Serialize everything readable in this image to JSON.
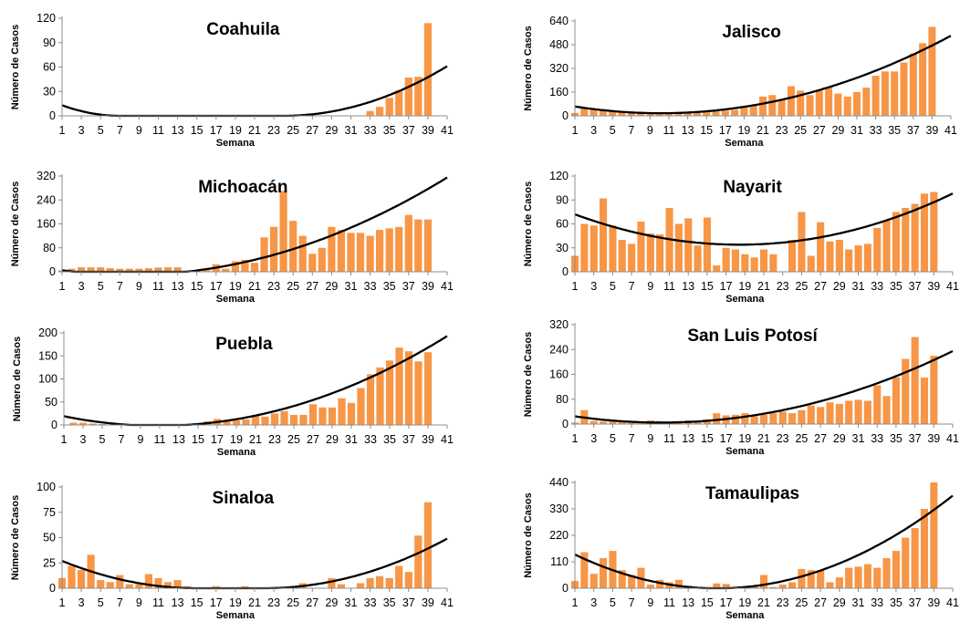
{
  "colors": {
    "bar": "#F79646",
    "trend": "#000000",
    "axis": "#8C8C8C"
  },
  "chart_data": [
    {
      "type": "bar",
      "title": "Coahuila",
      "xlabel": "Semana",
      "ylabel": "Número de Casos",
      "ylim": [
        0,
        120
      ],
      "yticks": [
        0,
        30,
        60,
        90,
        120
      ],
      "xlim": [
        1,
        41
      ],
      "xticks": [
        1,
        3,
        5,
        7,
        9,
        11,
        13,
        15,
        17,
        19,
        21,
        23,
        25,
        27,
        29,
        31,
        33,
        35,
        37,
        39,
        41
      ],
      "x": [
        1,
        2,
        3,
        4,
        5,
        6,
        7,
        8,
        9,
        10,
        11,
        12,
        13,
        14,
        15,
        16,
        17,
        18,
        19,
        20,
        21,
        22,
        23,
        24,
        25,
        26,
        27,
        28,
        29,
        30,
        31,
        32,
        33,
        34,
        35,
        36,
        37,
        38,
        39
      ],
      "values": [
        0,
        0,
        0,
        0,
        0,
        0,
        0,
        0,
        0,
        0,
        0,
        0,
        0,
        0,
        0,
        0,
        0,
        0,
        0,
        0,
        0,
        0,
        0,
        0,
        0,
        0,
        0,
        0,
        0,
        0,
        0,
        0,
        6,
        11,
        22,
        31,
        47,
        48,
        114
      ],
      "trendline": {
        "type": "polynomial",
        "order": 2,
        "start": 1,
        "end": 41,
        "points": [
          [
            1,
            13
          ],
          [
            7,
            0
          ],
          [
            24,
            0
          ],
          [
            41,
            61
          ]
        ]
      }
    },
    {
      "type": "bar",
      "title": "Jalisco",
      "xlabel": "Semana",
      "ylabel": "Número de Casos",
      "ylim": [
        0,
        640
      ],
      "yticks": [
        0,
        160,
        320,
        480,
        640
      ],
      "xlim": [
        1,
        41
      ],
      "xticks": [
        1,
        3,
        5,
        7,
        9,
        11,
        13,
        15,
        17,
        19,
        21,
        23,
        25,
        27,
        29,
        31,
        33,
        35,
        37,
        39,
        41
      ],
      "x": [
        1,
        2,
        3,
        4,
        5,
        6,
        7,
        8,
        9,
        10,
        11,
        12,
        13,
        14,
        15,
        16,
        17,
        18,
        19,
        20,
        21,
        22,
        23,
        24,
        25,
        26,
        27,
        28,
        29,
        30,
        31,
        32,
        33,
        34,
        35,
        36,
        37,
        38,
        39
      ],
      "values": [
        20,
        55,
        40,
        45,
        30,
        30,
        25,
        20,
        20,
        20,
        20,
        20,
        20,
        20,
        25,
        30,
        35,
        40,
        55,
        70,
        130,
        140,
        110,
        200,
        170,
        140,
        170,
        190,
        150,
        130,
        160,
        190,
        270,
        300,
        300,
        360,
        420,
        490,
        600
      ],
      "trendline": {
        "type": "polynomial",
        "order": 2,
        "start": 1,
        "end": 41,
        "points": [
          [
            1,
            63
          ],
          [
            11,
            18
          ],
          [
            41,
            540
          ]
        ]
      }
    },
    {
      "type": "bar",
      "title": "Michoacán",
      "xlabel": "Semana",
      "ylabel": "Número de Casos",
      "ylim": [
        0,
        320
      ],
      "yticks": [
        0,
        80,
        160,
        240,
        320
      ],
      "xlim": [
        1,
        41
      ],
      "xticks": [
        1,
        3,
        5,
        7,
        9,
        11,
        13,
        15,
        17,
        19,
        21,
        23,
        25,
        27,
        29,
        31,
        33,
        35,
        37,
        39,
        41
      ],
      "x": [
        1,
        2,
        3,
        4,
        5,
        6,
        7,
        8,
        9,
        10,
        11,
        12,
        13,
        14,
        15,
        16,
        17,
        18,
        19,
        20,
        21,
        22,
        23,
        24,
        25,
        26,
        27,
        28,
        29,
        30,
        31,
        32,
        33,
        34,
        35,
        36,
        37,
        38,
        39
      ],
      "values": [
        5,
        10,
        15,
        15,
        15,
        12,
        10,
        10,
        10,
        12,
        14,
        15,
        15,
        5,
        5,
        5,
        25,
        10,
        35,
        40,
        30,
        115,
        150,
        270,
        170,
        120,
        60,
        80,
        150,
        140,
        130,
        130,
        120,
        140,
        145,
        150,
        190,
        175,
        175
      ],
      "trendline": {
        "type": "polynomial",
        "order": 2,
        "start": 1,
        "end": 41,
        "points": [
          [
            1,
            5
          ],
          [
            21,
            40
          ],
          [
            41,
            315
          ]
        ]
      }
    },
    {
      "type": "bar",
      "title": "Nayarit",
      "xlabel": "Semana",
      "ylabel": "Número de Casos",
      "ylim": [
        0,
        120
      ],
      "yticks": [
        0,
        30,
        60,
        90,
        120
      ],
      "xlim": [
        1,
        41
      ],
      "xticks": [
        1,
        3,
        5,
        7,
        9,
        11,
        13,
        15,
        17,
        19,
        21,
        23,
        25,
        27,
        29,
        31,
        33,
        35,
        37,
        39,
        41
      ],
      "x": [
        1,
        2,
        3,
        4,
        5,
        6,
        7,
        8,
        9,
        10,
        11,
        12,
        13,
        14,
        15,
        16,
        17,
        18,
        19,
        20,
        21,
        22,
        23,
        24,
        25,
        26,
        27,
        28,
        29,
        30,
        31,
        32,
        33,
        34,
        35,
        36,
        37,
        38,
        39
      ],
      "values": [
        20,
        60,
        58,
        92,
        58,
        40,
        35,
        63,
        48,
        47,
        80,
        60,
        67,
        33,
        68,
        8,
        30,
        28,
        22,
        18,
        28,
        22,
        0,
        40,
        75,
        20,
        62,
        38,
        40,
        28,
        33,
        35,
        55,
        65,
        75,
        80,
        85,
        98,
        100
      ],
      "trendline": {
        "type": "polynomial",
        "order": 2,
        "start": 1,
        "end": 41,
        "points": [
          [
            1,
            72
          ],
          [
            19,
            34
          ],
          [
            41,
            98
          ]
        ]
      }
    },
    {
      "type": "bar",
      "title": "Puebla",
      "xlabel": "Semana",
      "ylabel": "Número de Casos",
      "ylim": [
        0,
        200
      ],
      "yticks": [
        0,
        50,
        100,
        150,
        200
      ],
      "xlim": [
        1,
        41
      ],
      "xticks": [
        1,
        3,
        5,
        7,
        9,
        11,
        13,
        15,
        17,
        19,
        21,
        23,
        25,
        27,
        29,
        31,
        33,
        35,
        37,
        39,
        41
      ],
      "x": [
        1,
        2,
        3,
        4,
        5,
        6,
        7,
        8,
        9,
        10,
        11,
        12,
        13,
        14,
        15,
        16,
        17,
        18,
        19,
        20,
        21,
        22,
        23,
        24,
        25,
        26,
        27,
        28,
        29,
        30,
        31,
        32,
        33,
        34,
        35,
        36,
        37,
        38,
        39
      ],
      "values": [
        0,
        5,
        5,
        3,
        2,
        0,
        0,
        0,
        0,
        0,
        0,
        0,
        2,
        2,
        0,
        8,
        13,
        8,
        10,
        12,
        22,
        18,
        25,
        30,
        22,
        22,
        45,
        38,
        38,
        58,
        48,
        80,
        110,
        125,
        140,
        168,
        160,
        138,
        158
      ],
      "trendline": {
        "type": "polynomial",
        "order": 2,
        "start": 1,
        "end": 41,
        "points": [
          [
            1,
            19
          ],
          [
            8,
            0
          ],
          [
            41,
            193
          ]
        ]
      }
    },
    {
      "type": "bar",
      "title": "San Luis Potosí",
      "xlabel": "Semana",
      "ylabel": "Número de Casos",
      "ylim": [
        0,
        320
      ],
      "yticks": [
        0,
        80,
        160,
        240,
        320
      ],
      "xlim": [
        1,
        41
      ],
      "xticks": [
        1,
        3,
        5,
        7,
        9,
        11,
        13,
        15,
        17,
        19,
        21,
        23,
        25,
        27,
        29,
        31,
        33,
        35,
        37,
        39,
        41
      ],
      "x": [
        1,
        2,
        3,
        4,
        5,
        6,
        7,
        8,
        9,
        10,
        11,
        12,
        13,
        14,
        15,
        16,
        17,
        18,
        19,
        20,
        21,
        22,
        23,
        24,
        25,
        26,
        27,
        28,
        29,
        30,
        31,
        32,
        33,
        34,
        35,
        36,
        37,
        38,
        39
      ],
      "values": [
        5,
        45,
        10,
        8,
        15,
        8,
        5,
        8,
        12,
        10,
        8,
        10,
        12,
        10,
        15,
        35,
        28,
        30,
        35,
        25,
        30,
        35,
        40,
        35,
        45,
        60,
        55,
        70,
        65,
        75,
        78,
        75,
        125,
        90,
        150,
        210,
        280,
        150,
        220
      ],
      "trendline": {
        "type": "polynomial",
        "order": 2,
        "start": 1,
        "end": 41,
        "points": [
          [
            1,
            25
          ],
          [
            11,
            5
          ],
          [
            41,
            235
          ]
        ]
      }
    },
    {
      "type": "bar",
      "title": "Sinaloa",
      "xlabel": "Semana",
      "ylabel": "Número de Casos",
      "ylim": [
        0,
        100
      ],
      "yticks": [
        0,
        25,
        50,
        75,
        100
      ],
      "xlim": [
        1,
        41
      ],
      "xticks": [
        1,
        3,
        5,
        7,
        9,
        11,
        13,
        15,
        17,
        19,
        21,
        23,
        25,
        27,
        29,
        31,
        33,
        35,
        37,
        39,
        41
      ],
      "x": [
        1,
        2,
        3,
        4,
        5,
        6,
        7,
        8,
        9,
        10,
        11,
        12,
        13,
        14,
        15,
        16,
        17,
        18,
        19,
        20,
        21,
        22,
        23,
        24,
        25,
        26,
        27,
        28,
        29,
        30,
        31,
        32,
        33,
        34,
        35,
        36,
        37,
        38,
        39
      ],
      "values": [
        10,
        22,
        18,
        33,
        8,
        6,
        13,
        4,
        4,
        14,
        10,
        6,
        8,
        2,
        0,
        0,
        2,
        0,
        0,
        2,
        0,
        0,
        0,
        0,
        0,
        5,
        0,
        0,
        10,
        4,
        0,
        5,
        10,
        12,
        10,
        22,
        16,
        52,
        85
      ],
      "trendline": {
        "type": "polynomial",
        "order": 2,
        "start": 1,
        "end": 41,
        "points": [
          [
            1,
            27
          ],
          [
            15,
            0
          ],
          [
            22,
            0
          ],
          [
            41,
            49
          ]
        ]
      }
    },
    {
      "type": "bar",
      "title": "Tamaulipas",
      "xlabel": "Semana",
      "ylabel": "Número de Casos",
      "ylim": [
        0,
        440
      ],
      "yticks": [
        0,
        110,
        220,
        330,
        440
      ],
      "xlim": [
        1,
        41
      ],
      "xticks": [
        1,
        3,
        5,
        7,
        9,
        11,
        13,
        15,
        17,
        19,
        21,
        23,
        25,
        27,
        29,
        31,
        33,
        35,
        37,
        39,
        41
      ],
      "x": [
        1,
        2,
        3,
        4,
        5,
        6,
        7,
        8,
        9,
        10,
        11,
        12,
        13,
        14,
        15,
        16,
        17,
        18,
        19,
        20,
        21,
        22,
        23,
        24,
        25,
        26,
        27,
        28,
        29,
        30,
        31,
        32,
        33,
        34,
        35,
        36,
        37,
        38,
        39
      ],
      "values": [
        30,
        150,
        60,
        125,
        155,
        75,
        55,
        85,
        15,
        35,
        25,
        35,
        10,
        5,
        5,
        20,
        18,
        5,
        5,
        10,
        55,
        5,
        15,
        25,
        80,
        75,
        75,
        25,
        45,
        85,
        90,
        100,
        85,
        125,
        155,
        210,
        250,
        330,
        440
      ],
      "trendline": {
        "type": "polynomial",
        "order": 2,
        "start": 1,
        "end": 41,
        "points": [
          [
            1,
            140
          ],
          [
            17,
            0
          ],
          [
            41,
            385
          ]
        ]
      }
    }
  ]
}
